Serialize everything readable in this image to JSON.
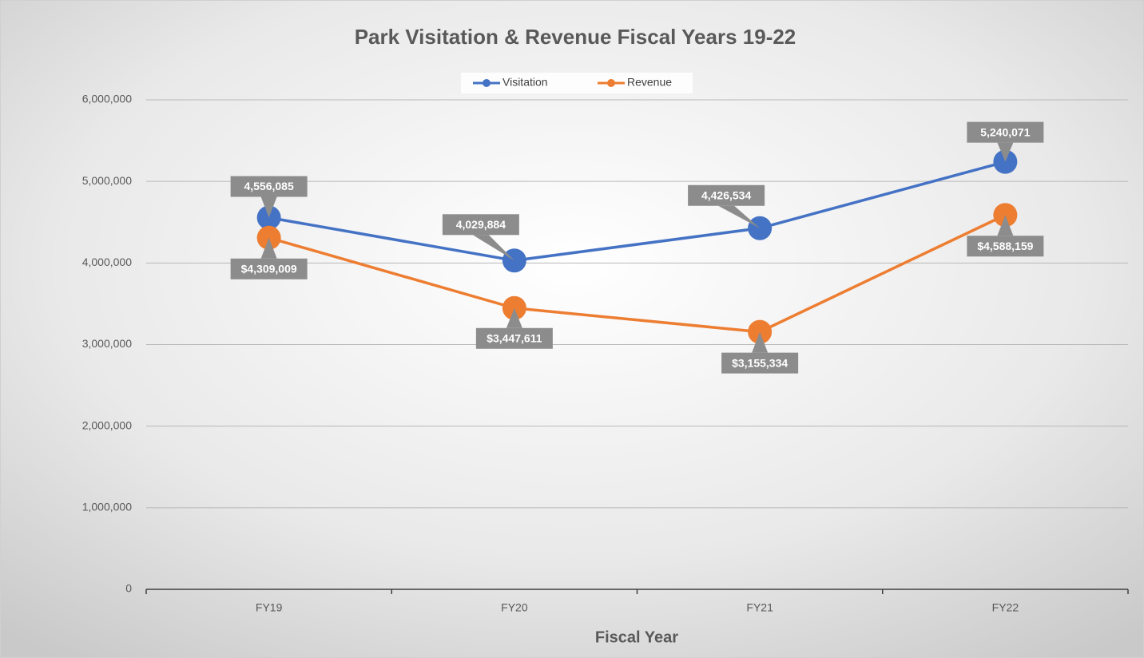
{
  "chart_data": {
    "type": "line",
    "title": "Park Visitation & Revenue Fiscal Years 19-22",
    "x_label": "Fiscal Year",
    "categories": [
      "FY19",
      "FY20",
      "FY21",
      "FY22"
    ],
    "series": [
      {
        "name": "Visitation",
        "color": "#4472c4",
        "values": [
          4556085,
          4029884,
          4426534,
          5240071
        ],
        "value_labels": [
          "4,556,085",
          "4,029,884",
          "4,426,534",
          "5,240,071"
        ]
      },
      {
        "name": "Revenue",
        "color": "#ed7d31",
        "values": [
          4309009,
          3447611,
          3155334,
          4588159
        ],
        "value_labels": [
          "$4,309,009",
          "$3,447,611",
          "$3,155,334",
          "$4,588,159"
        ]
      }
    ],
    "ylim": [
      0,
      6000000
    ],
    "yticks": [
      0,
      {
        "value": 1000000,
        "label": "1,000,000"
      },
      {
        "value": 2000000,
        "label": "2,000,000"
      },
      {
        "value": 3000000,
        "label": "3,000,000"
      },
      {
        "value": 4000000,
        "label": "4,000,000"
      },
      {
        "value": 5000000,
        "label": "5,000,000"
      },
      {
        "value": 6000000,
        "label": "6,000,000"
      }
    ],
    "grid": true,
    "legend": "top"
  }
}
